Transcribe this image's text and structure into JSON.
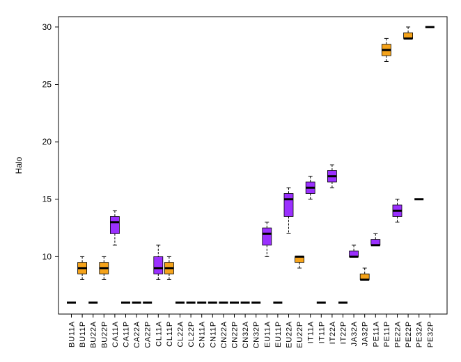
{
  "chart_data": {
    "type": "box",
    "ylabel": "Halo",
    "xlabel": "",
    "ylim": [
      5.0,
      30.9
    ],
    "y_ticks": [
      10,
      15,
      20,
      25,
      30
    ],
    "grid": false,
    "colors": {
      "purple": "#9b30ff",
      "orange": "#f5a31a",
      "median": "#000000",
      "axis": "#000000"
    },
    "categories": [
      "BU11A",
      "BU11P",
      "BU22A",
      "BU22P",
      "CA11A",
      "CA11P",
      "CA22A",
      "CA22P",
      "CL11A",
      "CL11P",
      "CL22A",
      "CL22P",
      "CN11A",
      "CN11P",
      "CN22A",
      "CN22P",
      "CN32A",
      "CN32P",
      "EU11A",
      "EU11P",
      "EU22A",
      "EU22P",
      "IT11A",
      "IT11P",
      "IT22A",
      "IT22P",
      "JA32A",
      "JA32P",
      "PE11A",
      "PE11P",
      "PE22A",
      "PE22P",
      "PE32A",
      "PE32P"
    ],
    "boxes": [
      {
        "min": 6,
        "q1": 6,
        "median": 6,
        "q3": 6,
        "max": 6,
        "fill": "#9b30ff"
      },
      {
        "min": 8,
        "q1": 8.5,
        "median": 9,
        "q3": 9.5,
        "max": 10,
        "fill": "#f5a31a"
      },
      {
        "min": 6,
        "q1": 6,
        "median": 6,
        "q3": 6,
        "max": 6,
        "fill": "#9b30ff"
      },
      {
        "min": 8,
        "q1": 8.5,
        "median": 9,
        "q3": 9.5,
        "max": 10,
        "fill": "#f5a31a"
      },
      {
        "min": 11,
        "q1": 12,
        "median": 13,
        "q3": 13.5,
        "max": 14,
        "fill": "#9b30ff"
      },
      {
        "min": 6,
        "q1": 6,
        "median": 6,
        "q3": 6,
        "max": 6,
        "fill": "#f5a31a"
      },
      {
        "min": 6,
        "q1": 6,
        "median": 6,
        "q3": 6,
        "max": 6,
        "fill": "#9b30ff"
      },
      {
        "min": 6,
        "q1": 6,
        "median": 6,
        "q3": 6,
        "max": 6,
        "fill": "#f5a31a"
      },
      {
        "min": 8,
        "q1": 8.5,
        "median": 9,
        "q3": 10,
        "max": 11,
        "fill": "#9b30ff"
      },
      {
        "min": 8,
        "q1": 8.5,
        "median": 9,
        "q3": 9.5,
        "max": 10,
        "fill": "#f5a31a"
      },
      {
        "min": 6,
        "q1": 6,
        "median": 6,
        "q3": 6,
        "max": 6,
        "fill": "#9b30ff"
      },
      {
        "min": 6,
        "q1": 6,
        "median": 6,
        "q3": 6,
        "max": 6,
        "fill": "#f5a31a"
      },
      {
        "min": 6,
        "q1": 6,
        "median": 6,
        "q3": 6,
        "max": 6,
        "fill": "#9b30ff"
      },
      {
        "min": 6,
        "q1": 6,
        "median": 6,
        "q3": 6,
        "max": 6,
        "fill": "#f5a31a"
      },
      {
        "min": 6,
        "q1": 6,
        "median": 6,
        "q3": 6,
        "max": 6,
        "fill": "#9b30ff"
      },
      {
        "min": 6,
        "q1": 6,
        "median": 6,
        "q3": 6,
        "max": 6,
        "fill": "#f5a31a"
      },
      {
        "min": 6,
        "q1": 6,
        "median": 6,
        "q3": 6,
        "max": 6,
        "fill": "#9b30ff"
      },
      {
        "min": 6,
        "q1": 6,
        "median": 6,
        "q3": 6,
        "max": 6,
        "fill": "#f5a31a"
      },
      {
        "min": 10,
        "q1": 11,
        "median": 12,
        "q3": 12.5,
        "max": 13,
        "fill": "#9b30ff"
      },
      {
        "min": 6,
        "q1": 6,
        "median": 6,
        "q3": 6,
        "max": 6,
        "fill": "#f5a31a"
      },
      {
        "min": 12,
        "q1": 13.5,
        "median": 15,
        "q3": 15.5,
        "max": 16,
        "fill": "#9b30ff"
      },
      {
        "min": 9,
        "q1": 9.5,
        "median": 10,
        "q3": 10,
        "max": 10,
        "fill": "#f5a31a"
      },
      {
        "min": 15,
        "q1": 15.5,
        "median": 16,
        "q3": 16.5,
        "max": 17,
        "fill": "#9b30ff"
      },
      {
        "min": 6,
        "q1": 6,
        "median": 6,
        "q3": 6,
        "max": 6,
        "fill": "#f5a31a"
      },
      {
        "min": 16,
        "q1": 16.5,
        "median": 17,
        "q3": 17.5,
        "max": 18,
        "fill": "#9b30ff"
      },
      {
        "min": 6,
        "q1": 6,
        "median": 6,
        "q3": 6,
        "max": 6,
        "fill": "#f5a31a"
      },
      {
        "min": 10,
        "q1": 10,
        "median": 10,
        "q3": 10.5,
        "max": 11,
        "fill": "#9b30ff"
      },
      {
        "min": 8,
        "q1": 8,
        "median": 8,
        "q3": 8.5,
        "max": 9,
        "fill": "#f5a31a"
      },
      {
        "min": 11,
        "q1": 11,
        "median": 11,
        "q3": 11.5,
        "max": 12,
        "fill": "#9b30ff"
      },
      {
        "min": 27,
        "q1": 27.5,
        "median": 28,
        "q3": 28.5,
        "max": 29,
        "fill": "#f5a31a"
      },
      {
        "min": 13,
        "q1": 13.5,
        "median": 14,
        "q3": 14.5,
        "max": 15,
        "fill": "#9b30ff"
      },
      {
        "min": 29,
        "q1": 29,
        "median": 29,
        "q3": 29.5,
        "max": 30,
        "fill": "#f5a31a"
      },
      {
        "min": 15,
        "q1": 15,
        "median": 15,
        "q3": 15,
        "max": 15,
        "fill": "#9b30ff"
      },
      {
        "min": 30,
        "q1": 30,
        "median": 30,
        "q3": 30,
        "max": 30,
        "fill": "#f5a31a"
      }
    ]
  }
}
